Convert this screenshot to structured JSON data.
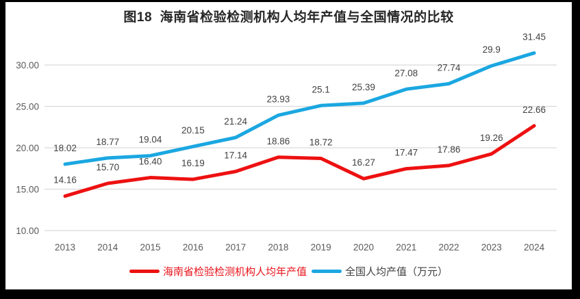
{
  "frame": {
    "background": "#ffffff",
    "border_color": "#000000"
  },
  "chart_data": {
    "type": "line",
    "title": "图18  海南省检验检测机构人均年产值与全国情况的比较",
    "categories": [
      "2013",
      "2014",
      "2015",
      "2016",
      "2017",
      "2018",
      "2019",
      "2020",
      "2021",
      "2022",
      "2023",
      "2024"
    ],
    "series": [
      {
        "key": "hainan",
        "name": "海南省检验检测机构人均年产值",
        "color": "#ed1111",
        "label_text_color": "#e8121a",
        "values": [
          14.16,
          15.7,
          16.4,
          16.19,
          17.14,
          18.86,
          18.72,
          16.27,
          17.47,
          17.86,
          19.26,
          22.66
        ],
        "point_labels": [
          "14.16",
          "15.70",
          "16.40",
          "16.19",
          "17.14",
          "18.86",
          "18.72",
          "16.27",
          "17.47",
          "17.86",
          "19.26",
          "22.66"
        ]
      },
      {
        "key": "national",
        "name": "全国人均产值（万元）",
        "color": "#1ba7e1",
        "label_text_color": "#404040",
        "values": [
          18.02,
          18.77,
          19.04,
          20.15,
          21.24,
          23.93,
          25.1,
          25.39,
          27.08,
          27.74,
          29.9,
          31.45
        ],
        "point_labels": [
          "18.02",
          "18.77",
          "19.04",
          "20.15",
          "21.24",
          "23.93",
          "25.1",
          "25.39",
          "27.08",
          "27.74",
          "29.9",
          "31.45"
        ]
      }
    ],
    "y_axis": {
      "tick_labels": [
        "10.00",
        "15.00",
        "20.00",
        "25.00",
        "30.00"
      ],
      "tick_values": [
        10,
        15,
        20,
        25,
        30
      ],
      "min": 10,
      "max": 30
    },
    "x_axis_label": "",
    "ylabel": "",
    "grid": true,
    "legend_position": "bottom",
    "styles": {
      "grid_color": "#d9d9d9",
      "axis_text_color": "#595959",
      "data_label_color": "#404040",
      "title_color": "#262626",
      "line_width": 5
    }
  }
}
